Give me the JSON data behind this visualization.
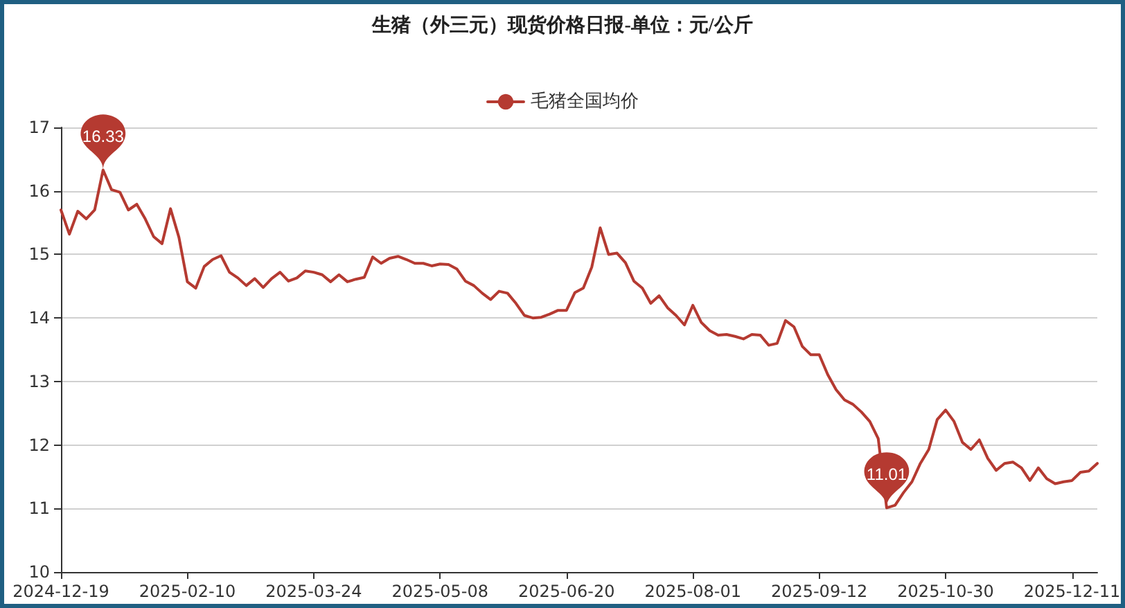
{
  "chart_data": {
    "type": "line",
    "title": "生猪（外三元）现货价格日报-单位：元/公斤",
    "categories": [
      "2024-12-19",
      null,
      null,
      null,
      null,
      null,
      null,
      null,
      null,
      null,
      null,
      null,
      null,
      null,
      null,
      "2025-02-10",
      null,
      null,
      null,
      null,
      null,
      null,
      null,
      null,
      null,
      null,
      null,
      null,
      null,
      null,
      "2025-03-24",
      null,
      null,
      null,
      null,
      null,
      null,
      null,
      null,
      null,
      null,
      null,
      null,
      null,
      null,
      "2025-05-08",
      null,
      null,
      null,
      null,
      null,
      null,
      null,
      null,
      null,
      null,
      null,
      null,
      null,
      null,
      "2025-06-20",
      null,
      null,
      null,
      null,
      null,
      null,
      null,
      null,
      null,
      null,
      null,
      null,
      null,
      null,
      "2025-08-01",
      null,
      null,
      null,
      null,
      null,
      null,
      null,
      null,
      null,
      null,
      null,
      null,
      null,
      null,
      "2025-09-12",
      null,
      null,
      null,
      null,
      null,
      null,
      null,
      null,
      null,
      null,
      null,
      null,
      null,
      null,
      "2025-10-30",
      null,
      null,
      null,
      null,
      null,
      null,
      null,
      null,
      null,
      null,
      null,
      null,
      null,
      null,
      "2025-12-11",
      null,
      null,
      null
    ],
    "series": [
      {
        "name": "毛猪全国均价",
        "color": "#b53a31",
        "values": [
          15.7,
          15.32,
          15.68,
          15.56,
          15.7,
          16.33,
          16.02,
          15.98,
          15.7,
          15.79,
          15.56,
          15.28,
          15.17,
          15.72,
          15.27,
          14.57,
          14.47,
          14.81,
          14.92,
          14.98,
          14.72,
          14.63,
          14.51,
          14.62,
          14.48,
          14.62,
          14.72,
          14.58,
          14.63,
          14.74,
          14.72,
          14.68,
          14.57,
          14.68,
          14.57,
          14.61,
          14.64,
          14.96,
          14.86,
          14.94,
          14.97,
          14.92,
          14.86,
          14.86,
          14.82,
          14.85,
          14.84,
          14.77,
          14.58,
          14.51,
          14.39,
          14.29,
          14.42,
          14.39,
          14.23,
          14.04,
          14.0,
          14.01,
          14.06,
          14.12,
          14.12,
          14.4,
          14.47,
          14.8,
          15.42,
          15.0,
          15.02,
          14.87,
          14.58,
          14.47,
          14.23,
          14.35,
          14.16,
          14.04,
          13.89,
          14.2,
          13.93,
          13.8,
          13.73,
          13.74,
          13.71,
          13.67,
          13.74,
          13.73,
          13.57,
          13.6,
          13.96,
          13.86,
          13.55,
          13.42,
          13.42,
          13.11,
          12.87,
          12.71,
          12.64,
          12.52,
          12.37,
          12.1,
          11.01,
          11.05,
          11.25,
          11.42,
          11.71,
          11.93,
          12.4,
          12.55,
          12.37,
          12.04,
          11.93,
          12.08,
          11.79,
          11.6,
          11.71,
          11.73,
          11.64,
          11.44,
          11.64,
          11.47,
          11.39,
          11.42,
          11.44,
          11.57,
          11.59,
          11.71
        ]
      }
    ],
    "ylim": [
      10,
      17
    ],
    "yticks": [
      10,
      11,
      12,
      13,
      14,
      15,
      16,
      17
    ],
    "grid": "y",
    "legend": "top",
    "annotations": [
      {
        "text": "16.33",
        "y": 16.33
      },
      {
        "text": "11.01",
        "y": 11.01
      }
    ]
  }
}
